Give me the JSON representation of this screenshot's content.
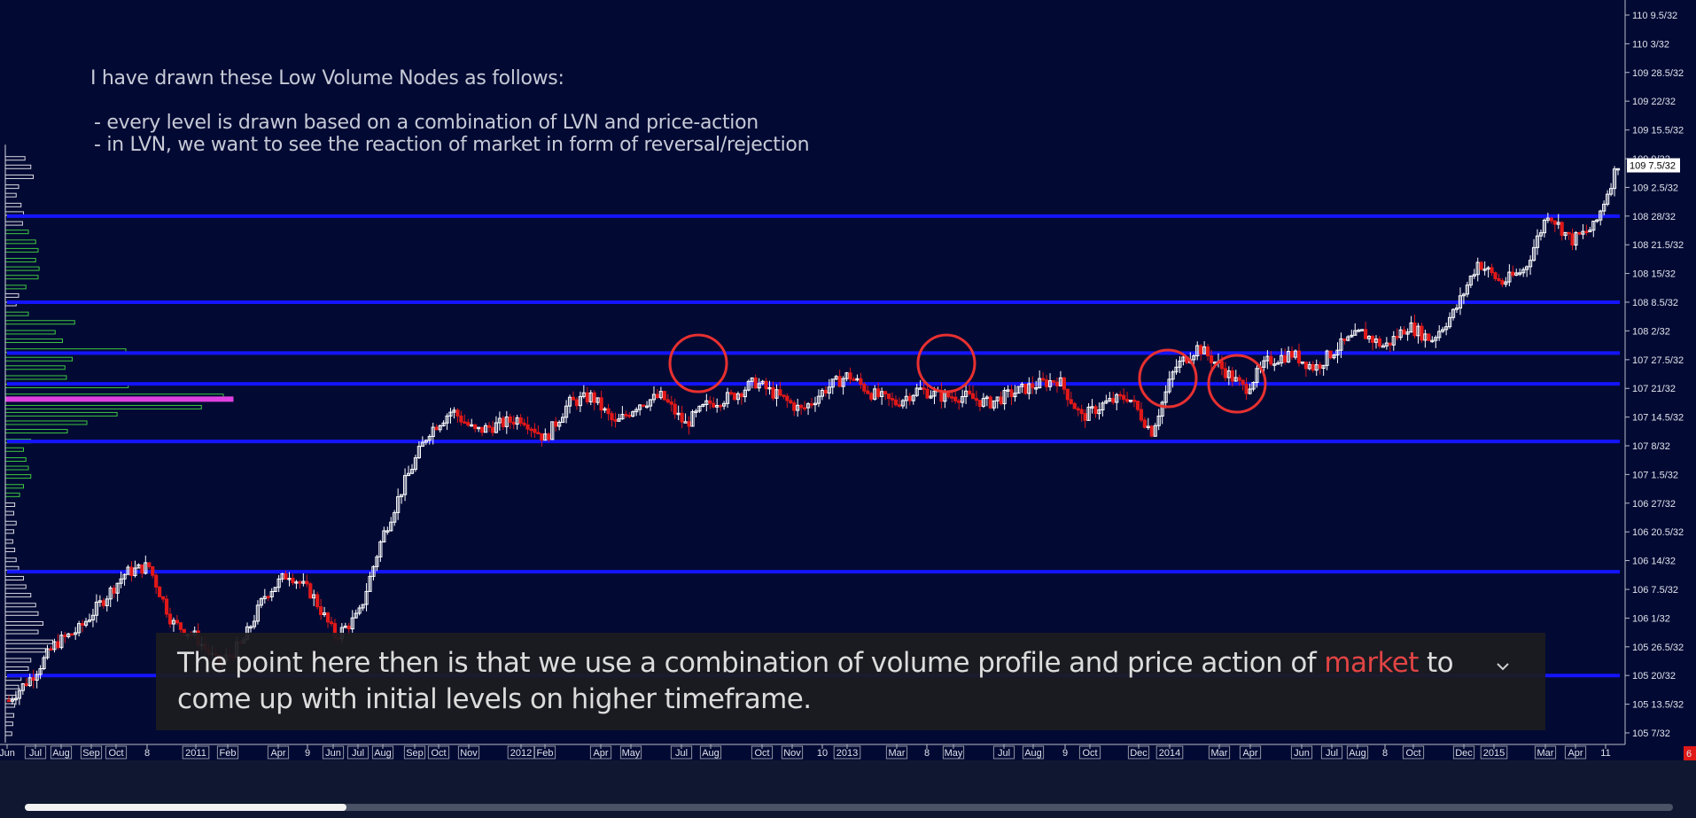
{
  "notes": {
    "heading": "I have drawn these Low Volume Nodes as follows:",
    "line1": "- every level is drawn based on a combination of LVN and price-action",
    "line2": "- in LVN, we want to see the reaction of market in form of reversal/rejection"
  },
  "caption": {
    "before": "The point here then is that we use a combination of volume profile and price action of ",
    "highlight": "market",
    "after": " to come up with initial levels on higher timeframe."
  },
  "player": {
    "progress_fraction": 0.195
  },
  "colors": {
    "background": "#020a34",
    "level_line": "#1414ff",
    "up_candle": "#ffffff",
    "down_candle": "#e01818",
    "profile_green": "#3ec63e",
    "profile_white": "#d8d8e0",
    "profile_poc": "#e040e0",
    "circle": "#e83030",
    "caption_highlight": "#e04444"
  },
  "chart_data": {
    "type": "candlestick",
    "y_ticks": [
      "110 9.5/32",
      "110 3/32",
      "109 28.5/32",
      "109 22/32",
      "109 15.5/32",
      "109 9/32",
      "109 2.5/32",
      "108 28/32",
      "108 21.5/32",
      "108 15/32",
      "108 8.5/32",
      "108 2/32",
      "107 27.5/32",
      "107 21/32",
      "107 14.5/32",
      "107 8/32",
      "107 1.5/32",
      "106 27/32",
      "106 20.5/32",
      "106 14/32",
      "106 7.5/32",
      "106 1/32",
      "105 26.5/32",
      "105 20/32",
      "105 13.5/32",
      "105 7/32"
    ],
    "y_tick_values": [
      110.297,
      110.094,
      109.891,
      109.688,
      109.484,
      109.281,
      109.078,
      108.875,
      108.672,
      108.469,
      108.266,
      108.063,
      107.859,
      107.656,
      107.453,
      107.25,
      107.047,
      106.844,
      106.641,
      106.438,
      106.234,
      106.031,
      105.828,
      105.625,
      105.422,
      105.219
    ],
    "last_price_label": "109 7.5/32",
    "last_price": 109.234,
    "corner_badge": "6",
    "x_labels": [
      "Jun",
      "Jul",
      "Aug",
      "Sep",
      "Oct",
      "8",
      "2011",
      "Feb",
      "Apr",
      "9",
      "Jun",
      "Jul",
      "Aug",
      "Sep",
      "Oct",
      "Nov",
      "2012",
      "Feb",
      "Apr",
      "May",
      "Jul",
      "Aug",
      "Oct",
      "Nov",
      "10",
      "2013",
      "Mar",
      "8",
      "May",
      "Jul",
      "Aug",
      "9",
      "Oct",
      "Dec",
      "2014",
      "Mar",
      "Apr",
      "Jun",
      "Jul",
      "Aug",
      "8",
      "Oct",
      "Dec",
      "2015",
      "Mar",
      "Apr",
      "11"
    ],
    "boxed_x_labels": [
      "Jul",
      "Aug",
      "Sep",
      "Oct",
      "2011",
      "Feb",
      "Apr",
      "Jun",
      "Jul",
      "Aug",
      "Sep",
      "Oct",
      "Nov",
      "2012",
      "Feb",
      "Apr",
      "May",
      "Jul",
      "Aug",
      "Oct",
      "Nov",
      "2013",
      "Mar",
      "May",
      "Jul",
      "Aug",
      "Oct",
      "Dec",
      "2014",
      "Mar",
      "Apr",
      "Jun",
      "Jul",
      "Aug",
      "Oct",
      "Dec",
      "2015",
      "Mar",
      "Apr"
    ],
    "lvn_levels": [
      108.875,
      108.266,
      107.906,
      107.688,
      107.281,
      106.359,
      105.625
    ],
    "highlighted_reactions": [
      "Jul 2012",
      "May 2013",
      "Jan 2014",
      "Apr 2014"
    ],
    "price_path": [
      [
        0,
        105.45
      ],
      [
        1,
        105.62
      ],
      [
        2,
        105.85
      ],
      [
        3,
        105.95
      ],
      [
        4,
        106.15
      ],
      [
        5,
        106.35
      ],
      [
        6,
        106.4
      ],
      [
        7,
        106.0
      ],
      [
        8,
        105.9
      ],
      [
        9,
        105.7
      ],
      [
        10,
        105.85
      ],
      [
        11,
        106.2
      ],
      [
        12,
        106.35
      ],
      [
        13,
        106.2
      ],
      [
        14,
        105.9
      ],
      [
        15,
        106.05
      ],
      [
        16,
        106.6
      ],
      [
        17,
        107.0
      ],
      [
        18,
        107.35
      ],
      [
        19,
        107.5
      ],
      [
        20,
        107.35
      ],
      [
        21,
        107.4
      ],
      [
        22,
        107.45
      ],
      [
        23,
        107.3
      ],
      [
        24,
        107.55
      ],
      [
        25,
        107.6
      ],
      [
        26,
        107.4
      ],
      [
        27,
        107.55
      ],
      [
        28,
        107.6
      ],
      [
        29,
        107.4
      ],
      [
        30,
        107.55
      ],
      [
        31,
        107.6
      ],
      [
        32,
        107.7
      ],
      [
        33,
        107.6
      ],
      [
        34,
        107.5
      ],
      [
        35,
        107.65
      ],
      [
        36,
        107.75
      ],
      [
        37,
        107.62
      ],
      [
        38,
        107.55
      ],
      [
        39,
        107.65
      ],
      [
        40,
        107.6
      ],
      [
        41,
        107.6
      ],
      [
        42,
        107.55
      ],
      [
        43,
        107.62
      ],
      [
        44,
        107.68
      ],
      [
        45,
        107.72
      ],
      [
        46,
        107.45
      ],
      [
        47,
        107.55
      ],
      [
        48,
        107.6
      ],
      [
        49,
        107.35
      ],
      [
        50,
        107.8
      ],
      [
        51,
        107.95
      ],
      [
        52,
        107.8
      ],
      [
        53,
        107.65
      ],
      [
        54,
        107.85
      ],
      [
        55,
        107.9
      ],
      [
        56,
        107.8
      ],
      [
        57,
        107.95
      ],
      [
        58,
        108.05
      ],
      [
        59,
        107.95
      ],
      [
        60,
        108.1
      ],
      [
        61,
        108.0
      ],
      [
        62,
        108.2
      ],
      [
        63,
        108.55
      ],
      [
        64,
        108.4
      ],
      [
        65,
        108.5
      ],
      [
        66,
        108.9
      ],
      [
        67,
        108.7
      ],
      [
        68,
        108.8
      ],
      [
        69,
        109.25
      ]
    ],
    "candle_count": 460,
    "volume_profile": [
      {
        "price": 109.28,
        "size": 33,
        "color": "white"
      },
      {
        "price": 109.22,
        "size": 45,
        "color": "white"
      },
      {
        "price": 109.15,
        "size": 50,
        "color": "white"
      },
      {
        "price": 109.08,
        "size": 20,
        "color": "white"
      },
      {
        "price": 109.02,
        "size": 15,
        "color": "white"
      },
      {
        "price": 108.95,
        "size": 25,
        "color": "white"
      },
      {
        "price": 108.89,
        "size": 30,
        "color": "white"
      },
      {
        "price": 108.82,
        "size": 28,
        "color": "white"
      },
      {
        "price": 108.76,
        "size": 40,
        "color": "green"
      },
      {
        "price": 108.69,
        "size": 55,
        "color": "green"
      },
      {
        "price": 108.63,
        "size": 60,
        "color": "green"
      },
      {
        "price": 108.56,
        "size": 55,
        "color": "green"
      },
      {
        "price": 108.5,
        "size": 62,
        "color": "green"
      },
      {
        "price": 108.44,
        "size": 60,
        "color": "green"
      },
      {
        "price": 108.37,
        "size": 35,
        "color": "green"
      },
      {
        "price": 108.31,
        "size": 20,
        "color": "white"
      },
      {
        "price": 108.25,
        "size": 15,
        "color": "white"
      },
      {
        "price": 108.18,
        "size": 40,
        "color": "green"
      },
      {
        "price": 108.12,
        "size": 135,
        "color": "green"
      },
      {
        "price": 108.05,
        "size": 95,
        "color": "green"
      },
      {
        "price": 107.99,
        "size": 110,
        "color": "green"
      },
      {
        "price": 107.92,
        "size": 240,
        "color": "green"
      },
      {
        "price": 107.86,
        "size": 130,
        "color": "green"
      },
      {
        "price": 107.8,
        "size": 115,
        "color": "green"
      },
      {
        "price": 107.73,
        "size": 118,
        "color": "green"
      },
      {
        "price": 107.67,
        "size": 245,
        "color": "green"
      },
      {
        "price": 107.6,
        "size": 440,
        "color": "green"
      },
      {
        "price": 107.58,
        "size": 460,
        "color": "poc"
      },
      {
        "price": 107.52,
        "size": 395,
        "color": "green"
      },
      {
        "price": 107.47,
        "size": 222,
        "color": "green"
      },
      {
        "price": 107.41,
        "size": 160,
        "color": "green"
      },
      {
        "price": 107.35,
        "size": 120,
        "color": "green"
      },
      {
        "price": 107.28,
        "size": 45,
        "color": "green"
      },
      {
        "price": 107.22,
        "size": 30,
        "color": "green"
      },
      {
        "price": 107.15,
        "size": 35,
        "color": "green"
      },
      {
        "price": 107.09,
        "size": 40,
        "color": "green"
      },
      {
        "price": 107.03,
        "size": 45,
        "color": "green"
      },
      {
        "price": 106.96,
        "size": 30,
        "color": "green"
      },
      {
        "price": 106.9,
        "size": 22,
        "color": "green"
      },
      {
        "price": 106.83,
        "size": 12,
        "color": "white"
      },
      {
        "price": 106.77,
        "size": 10,
        "color": "white"
      },
      {
        "price": 106.7,
        "size": 15,
        "color": "white"
      },
      {
        "price": 106.64,
        "size": 10,
        "color": "white"
      },
      {
        "price": 106.57,
        "size": 8,
        "color": "white"
      },
      {
        "price": 106.51,
        "size": 12,
        "color": "white"
      },
      {
        "price": 106.44,
        "size": 15,
        "color": "white"
      },
      {
        "price": 106.38,
        "size": 20,
        "color": "white"
      },
      {
        "price": 106.31,
        "size": 30,
        "color": "white"
      },
      {
        "price": 106.25,
        "size": 35,
        "color": "white"
      },
      {
        "price": 106.19,
        "size": 45,
        "color": "white"
      },
      {
        "price": 106.12,
        "size": 55,
        "color": "white"
      },
      {
        "price": 106.06,
        "size": 60,
        "color": "white"
      },
      {
        "price": 105.99,
        "size": 70,
        "color": "white"
      },
      {
        "price": 105.93,
        "size": 60,
        "color": "white"
      },
      {
        "price": 105.86,
        "size": 90,
        "color": "white"
      },
      {
        "price": 105.8,
        "size": 75,
        "color": "white"
      },
      {
        "price": 105.73,
        "size": 45,
        "color": "white"
      },
      {
        "price": 105.67,
        "size": 40,
        "color": "white"
      },
      {
        "price": 105.6,
        "size": 25,
        "color": "white"
      },
      {
        "price": 105.54,
        "size": 20,
        "color": "white"
      },
      {
        "price": 105.47,
        "size": 15,
        "color": "white"
      },
      {
        "price": 105.41,
        "size": 12,
        "color": "white"
      },
      {
        "price": 105.34,
        "size": 10,
        "color": "white"
      },
      {
        "price": 105.28,
        "size": 8,
        "color": "white"
      },
      {
        "price": 105.21,
        "size": 6,
        "color": "white"
      }
    ]
  }
}
